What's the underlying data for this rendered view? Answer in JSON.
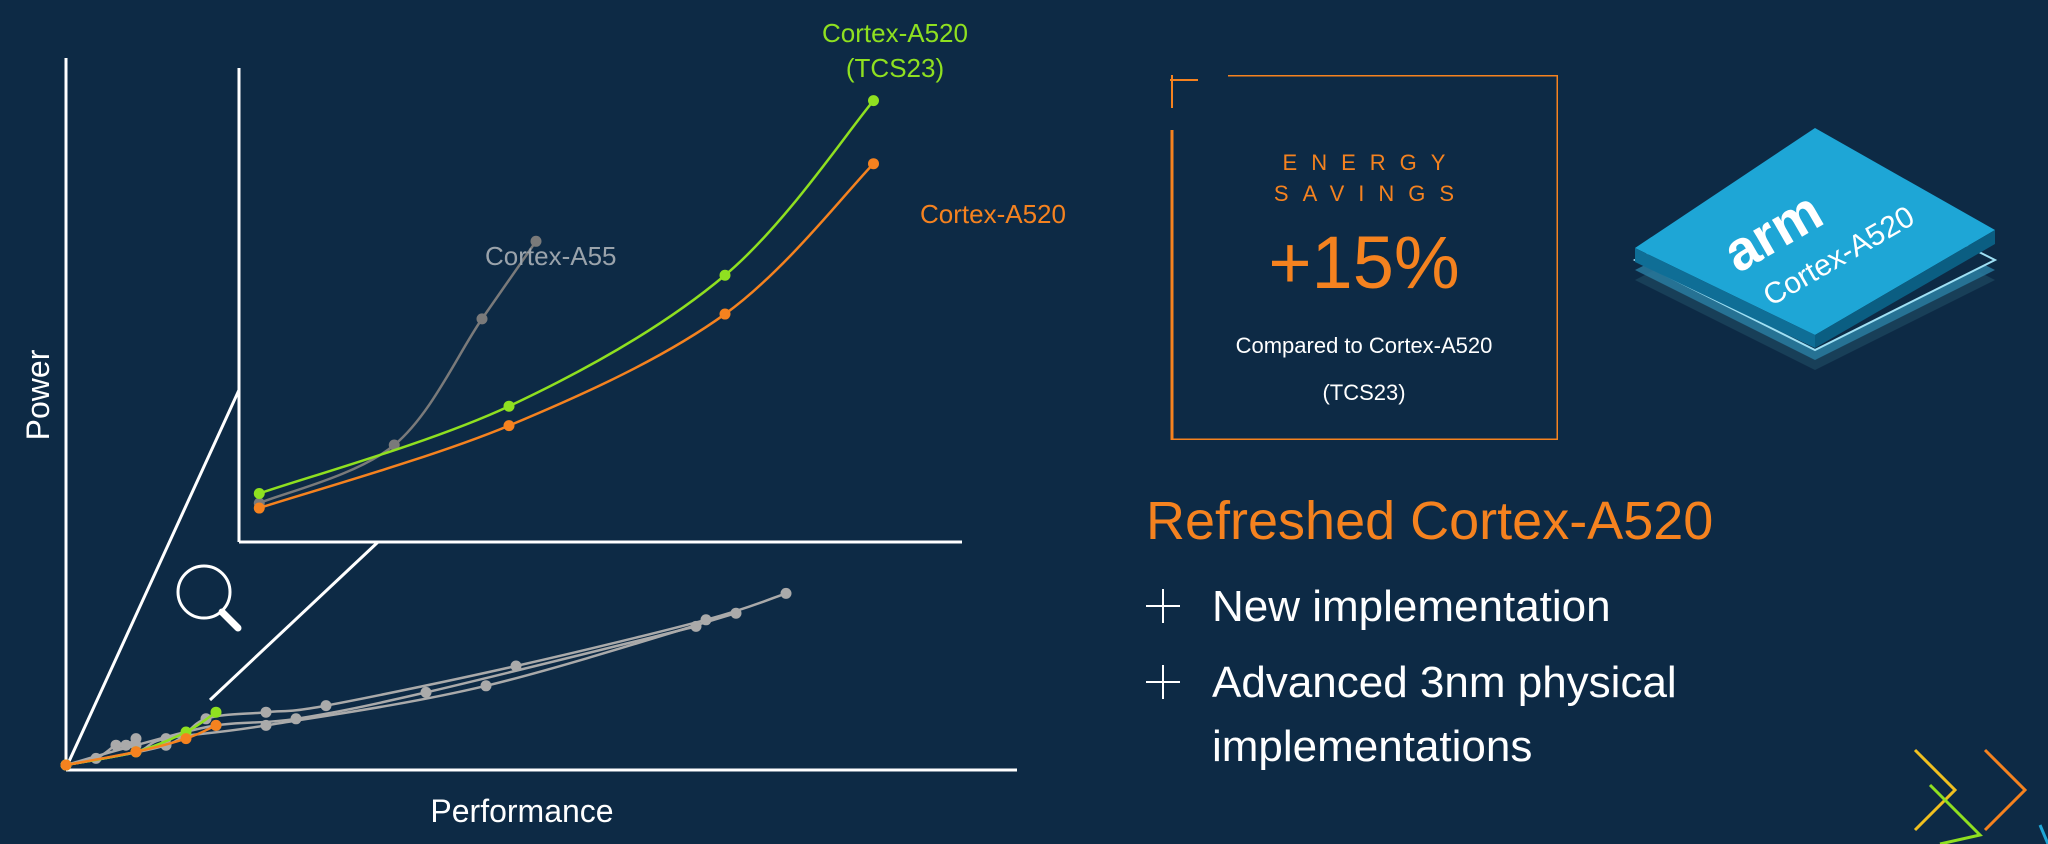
{
  "chart_data": {
    "type": "line",
    "title": "",
    "xlabel": "Performance",
    "ylabel": "Power",
    "xlim": [
      0,
      100
    ],
    "ylim": [
      0,
      100
    ],
    "grid": false,
    "legend": "none",
    "main_plot": {
      "series": [
        {
          "color": "#aaaaaa",
          "x": [
            0,
            7,
            15,
            23,
            36,
            63
          ],
          "y": [
            0,
            3,
            6,
            7,
            11,
            21
          ]
        },
        {
          "color": "#aaaaaa",
          "x": [
            0,
            10,
            14,
            20,
            26,
            45,
            64,
            72
          ],
          "y": [
            0,
            3,
            7,
            8,
            9,
            15,
            22,
            26
          ]
        },
        {
          "color": "#aaaaaa",
          "x": [
            0,
            7,
            10,
            20,
            42,
            67
          ],
          "y": [
            0,
            2,
            4,
            6,
            12,
            23
          ]
        },
        {
          "color": "#aaaaaa",
          "x": [
            0,
            3,
            5,
            6,
            7
          ],
          "y": [
            0,
            1,
            3,
            3,
            4
          ]
        },
        {
          "name": "Cortex-A520 (TCS23)",
          "color": "#8fe020",
          "x": [
            0,
            7,
            12,
            15
          ],
          "y": [
            0,
            2,
            5,
            8
          ]
        },
        {
          "name": "Cortex-A520",
          "color": "#f5821f",
          "x": [
            0,
            7,
            12,
            15
          ],
          "y": [
            0,
            2,
            4,
            6
          ]
        }
      ]
    },
    "zoom_inset": {
      "series": [
        {
          "name": "Cortex-A55",
          "color": "#7a7a7a",
          "x": [
            3,
            23,
            36,
            44
          ],
          "y": [
            8,
            20,
            46,
            62
          ]
        },
        {
          "name": "Cortex-A520 (TCS23)",
          "color": "#8fe020",
          "x": [
            3,
            40,
            72,
            94
          ],
          "y": [
            10,
            28,
            55,
            91
          ]
        },
        {
          "name": "Cortex-A520",
          "color": "#f5821f",
          "x": [
            3,
            40,
            72,
            94
          ],
          "y": [
            7,
            24,
            47,
            78
          ]
        }
      ],
      "labels": [
        "Cortex-A520",
        "(TCS23)",
        "Cortex-A520",
        "Cortex-A55"
      ]
    }
  },
  "card": {
    "energy_line1": "ENERGY",
    "energy_line2": "SAVINGS",
    "value": "+15%",
    "compare_line1": "Compared to Cortex-A520",
    "compare_line2": "(TCS23)"
  },
  "headline": "Refreshed Cortex-A520",
  "bullets": [
    {
      "text": "New implementation"
    },
    {
      "text": "Advanced 3nm physical"
    },
    {
      "text": "implementations"
    }
  ],
  "chip": {
    "brand": "arm",
    "product": "Cortex-A520"
  },
  "colors": {
    "background": "#0d2a45",
    "accent_orange": "#f5821f",
    "accent_green": "#8fe020",
    "chip_blue": "#1ea6d6"
  },
  "icons": [
    "magnifier-icon",
    "plus-bullet-icon",
    "chevron-arrows-icon"
  ]
}
